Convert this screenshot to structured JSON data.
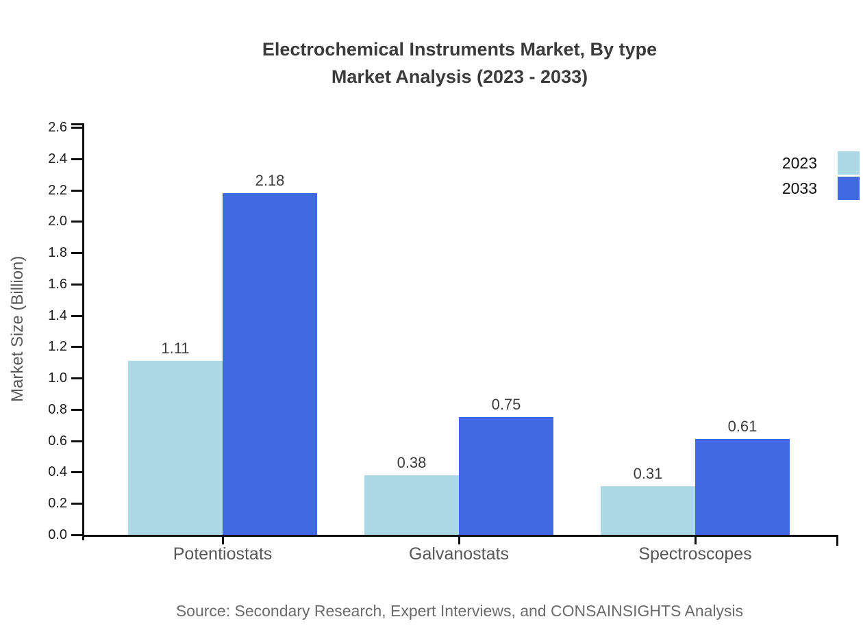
{
  "chart_data": {
    "type": "bar",
    "title": "Electrochemical Instruments Market, By type Market Analysis (2023 - 2033)",
    "title_line1": "Electrochemical Instruments Market, By type",
    "title_line2": "Market Analysis (2023 - 2033)",
    "categories": [
      "Potentiostats",
      "Galvanostats",
      "Spectroscopes"
    ],
    "series": [
      {
        "name": "2023",
        "color": "#add8e6",
        "values": [
          1.11,
          0.38,
          0.31
        ],
        "labels": [
          "1.11",
          "0.38",
          "0.31"
        ]
      },
      {
        "name": "2033",
        "color": "#4169e1",
        "values": [
          2.18,
          0.75,
          0.61
        ],
        "labels": [
          "2.18",
          "0.75",
          "0.61"
        ]
      }
    ],
    "xlabel": "",
    "ylabel": "Market Size (Billion)",
    "ylim": [
      0,
      2.6
    ],
    "ytick_interval": 0.2,
    "ytick_labels": [
      "0.0",
      "0.2",
      "0.4",
      "0.6",
      "0.8",
      "1.0",
      "1.2",
      "1.4",
      "1.6",
      "1.8",
      "2.0",
      "2.2",
      "2.4",
      "2.6"
    ],
    "grid": false,
    "legend": {
      "position": "top-right",
      "entries": [
        {
          "label": "2023",
          "color": "#add8e6"
        },
        {
          "label": "2033",
          "color": "#4169e1"
        }
      ]
    },
    "source": "Source: Secondary Research, Expert Interviews, and CONSAINSIGHTS Analysis"
  },
  "colors": {
    "background": "#ffffff",
    "series_2023": "#add8e6",
    "series_2033": "#4169e1",
    "axis_line": "#111111",
    "title_text": "#3b3b3b",
    "tick_text": "#212121",
    "category_text": "#575757",
    "axis_label_text": "#595959",
    "value_label_text": "#3d3d3d",
    "source_text": "#6b6b6b",
    "legend_text": "#111111"
  }
}
